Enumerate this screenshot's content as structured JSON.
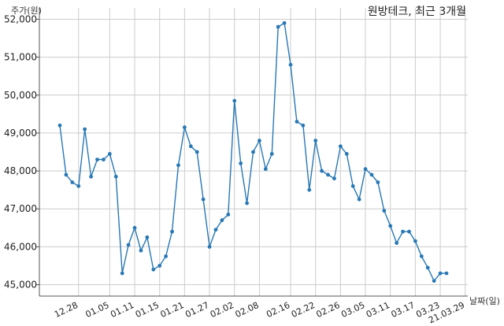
{
  "chart_data": {
    "type": "line",
    "title": "원방테크, 최근 3개월",
    "ylabel": "주가(원)",
    "xlabel": "날짜(일)",
    "ylim": [
      44700,
      52300
    ],
    "yticks": [
      45000,
      46000,
      47000,
      48000,
      49000,
      50000,
      51000,
      52000
    ],
    "ytick_labels": [
      "45,000",
      "46,000",
      "47,000",
      "48,000",
      "49,000",
      "50,000",
      "51,000",
      "52,000"
    ],
    "grid": true,
    "line_color": "#2878b5",
    "xtick_labels": [
      "12.28",
      "01.05",
      "01.11",
      "01.15",
      "01.21",
      "01.27",
      "02.02",
      "02.08",
      "02.16",
      "02.22",
      "02.26",
      "03.05",
      "03.11",
      "03.17",
      "03.23",
      "21.03.29"
    ],
    "xtick_indices": [
      3,
      8,
      12,
      16,
      20,
      24,
      28,
      32,
      37,
      41,
      45,
      49,
      53,
      57,
      61,
      65
    ],
    "series": [
      {
        "values": [
          49200,
          47900,
          47700,
          47600,
          49100,
          47850,
          48300,
          48300,
          48450,
          47850,
          45300,
          46050,
          46500,
          45900,
          46250,
          45400,
          45500,
          45750,
          46400,
          48150,
          49150,
          48650,
          48500,
          47250,
          46000,
          46450,
          46700,
          46850,
          49850,
          48200,
          47150,
          48500,
          48800,
          48050,
          48450,
          51800,
          51900,
          50800,
          49300,
          49200,
          47500,
          48800,
          48000,
          47900,
          47800,
          48650,
          48450,
          47600,
          47250,
          48050,
          47900,
          47700,
          46950,
          46550,
          46100,
          46400,
          46400,
          46150,
          45750,
          45450,
          45100,
          45300,
          45300
        ]
      }
    ]
  }
}
